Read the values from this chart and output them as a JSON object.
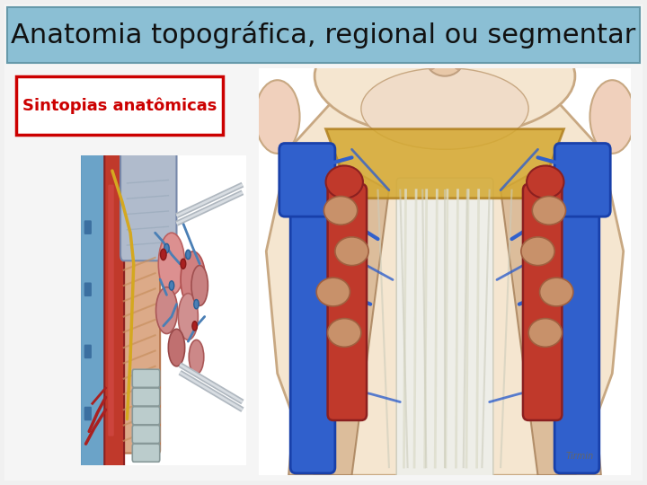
{
  "title": "Anatomia topográfica, regional ou segmentar",
  "subtitle": "Sintopias anatômicas",
  "title_bg_color": "#8BBFD4",
  "title_border_color": "#6699AA",
  "title_text_color": "#111111",
  "subtitle_text_color": "#cc0000",
  "subtitle_border_color": "#cc0000",
  "subtitle_bg_color": "#ffffff",
  "bg_color": "#f0f0f0",
  "title_fontsize": 22,
  "subtitle_fontsize": 13,
  "fig_width": 7.2,
  "fig_height": 5.4,
  "dpi": 100
}
